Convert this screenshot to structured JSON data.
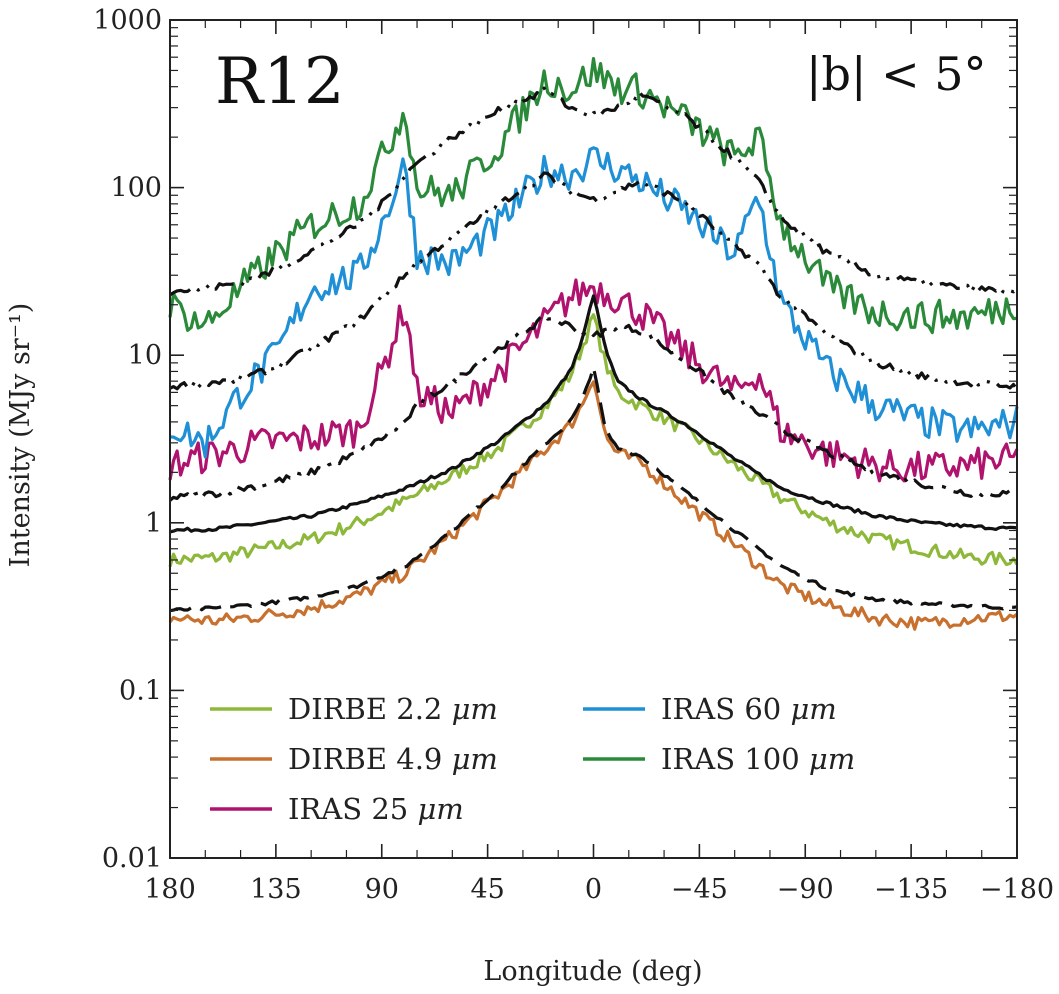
{
  "chart_data": {
    "type": "line",
    "title": "R12",
    "annotation": "|b| < 5°",
    "xlabel": "Longitude (deg)",
    "ylabel": "Intensity (MJy sr⁻¹)",
    "xlim": [
      180,
      -180
    ],
    "ylim": [
      0.01,
      1000
    ],
    "yscale": "log",
    "xticks": [
      180,
      135,
      90,
      45,
      0,
      -45,
      -90,
      -135,
      -180
    ],
    "xtick_labels": [
      "180",
      "135",
      "90",
      "45",
      "0",
      "−45",
      "−90",
      "−135",
      "−180"
    ],
    "yticks": [
      0.01,
      0.1,
      1,
      10,
      100,
      1000
    ],
    "ytick_labels": [
      "0.01",
      "0.1",
      "1",
      "10",
      "100",
      "1000"
    ],
    "series": [
      {
        "name": "DIRBE 2.2 μm",
        "label": "DIRBE 2.2 ",
        "unit": "μm",
        "color": "#8db83a",
        "x": [
          180,
          160,
          140,
          120,
          100,
          80,
          60,
          40,
          20,
          10,
          5,
          0,
          -5,
          -10,
          -20,
          -40,
          -60,
          -80,
          -100,
          -120,
          -140,
          -160,
          -180
        ],
        "values": [
          0.6,
          0.62,
          0.7,
          0.8,
          1.0,
          1.35,
          1.9,
          2.8,
          5.0,
          7.5,
          11,
          17,
          9,
          6,
          5,
          3.5,
          2.2,
          1.4,
          1.0,
          0.8,
          0.7,
          0.62,
          0.6
        ],
        "model": [
          0.9,
          0.92,
          1.0,
          1.1,
          1.3,
          1.6,
          2.1,
          3.1,
          5.2,
          8,
          12,
          23,
          11,
          7,
          5.5,
          3.8,
          2.4,
          1.6,
          1.3,
          1.1,
          1.0,
          0.95,
          0.92
        ],
        "model_style": "solid"
      },
      {
        "name": "DIRBE 4.9 μm",
        "label": "DIRBE 4.9 ",
        "unit": "μm",
        "color": "#c8702e",
        "x": [
          180,
          160,
          140,
          120,
          100,
          80,
          60,
          40,
          20,
          10,
          5,
          0,
          -5,
          -10,
          -20,
          -40,
          -60,
          -80,
          -100,
          -120,
          -140,
          -160,
          -180
        ],
        "values": [
          0.27,
          0.26,
          0.28,
          0.31,
          0.37,
          0.5,
          0.85,
          1.5,
          2.8,
          3.8,
          5,
          7.5,
          3.3,
          2.6,
          2.3,
          1.3,
          0.75,
          0.42,
          0.32,
          0.27,
          0.25,
          0.27,
          0.28
        ],
        "model": [
          0.3,
          0.31,
          0.33,
          0.36,
          0.42,
          0.55,
          0.9,
          1.6,
          3.0,
          4.0,
          5.3,
          8.5,
          3.6,
          2.8,
          2.5,
          1.5,
          0.9,
          0.55,
          0.4,
          0.35,
          0.33,
          0.32,
          0.31
        ],
        "model_style": "dash"
      },
      {
        "name": "IRAS 25 μm",
        "label": "IRAS 25 ",
        "unit": "μm",
        "color": "#b0136e",
        "x": [
          180,
          160,
          140,
          120,
          100,
          90,
          80,
          75,
          60,
          40,
          20,
          10,
          0,
          -10,
          -20,
          -40,
          -60,
          -70,
          -80,
          -100,
          -120,
          -140,
          -160,
          -180
        ],
        "values": [
          2.2,
          2.6,
          3.0,
          3.2,
          3.6,
          8.0,
          20,
          6.0,
          4.5,
          8,
          16,
          22,
          26,
          22,
          18,
          10,
          6.0,
          8.0,
          3.5,
          2.6,
          2.2,
          2.1,
          2.2,
          2.4
        ],
        "model": [
          1.4,
          1.5,
          1.7,
          2.0,
          2.6,
          3.2,
          4.0,
          5.0,
          7.0,
          11,
          17,
          15,
          13,
          15,
          14,
          9,
          5.5,
          4.5,
          3.6,
          2.6,
          2.0,
          1.7,
          1.5,
          1.5
        ],
        "model_style": "dashdot"
      },
      {
        "name": "IRAS 60 μm",
        "label": "IRAS 60 ",
        "unit": "μm",
        "color": "#1f8fd6",
        "x": [
          180,
          165,
          150,
          135,
          120,
          100,
          90,
          80,
          75,
          60,
          40,
          20,
          10,
          0,
          -10,
          -20,
          -40,
          -60,
          -70,
          -80,
          -100,
          -120,
          -140,
          -160,
          -180
        ],
        "values": [
          3.8,
          3.0,
          6.0,
          10,
          25,
          30,
          60,
          140,
          40,
          35,
          60,
          130,
          120,
          150,
          130,
          110,
          70,
          40,
          90,
          20,
          8,
          5,
          4,
          3.5,
          4.0
        ],
        "model": [
          6.5,
          6.8,
          7.2,
          8.5,
          11,
          16,
          22,
          30,
          36,
          50,
          80,
          120,
          95,
          85,
          95,
          110,
          80,
          45,
          35,
          22,
          13,
          9,
          7.5,
          6.8,
          6.5
        ],
        "model_style": "dashdotdot"
      },
      {
        "name": "IRAS 100 μm",
        "label": "IRAS 100 ",
        "unit": "μm",
        "color": "#2a8a3a",
        "x": [
          180,
          165,
          150,
          135,
          120,
          100,
          90,
          80,
          75,
          60,
          40,
          20,
          10,
          0,
          -10,
          -20,
          -40,
          -60,
          -70,
          -80,
          -100,
          -120,
          -140,
          -160,
          -180
        ],
        "values": [
          20,
          15,
          25,
          40,
          60,
          80,
          150,
          300,
          100,
          90,
          180,
          450,
          380,
          500,
          400,
          380,
          250,
          150,
          200,
          60,
          25,
          18,
          17,
          17,
          20
        ],
        "model": [
          24,
          25,
          27,
          32,
          42,
          60,
          80,
          120,
          140,
          200,
          290,
          380,
          300,
          270,
          300,
          360,
          260,
          150,
          110,
          65,
          40,
          30,
          27,
          25,
          24
        ],
        "model_style": "dashdotdot"
      }
    ],
    "legend": [
      {
        "label": "DIRBE 2.2 ",
        "unit": "μm",
        "color": "#8db83a"
      },
      {
        "label": "DIRBE 4.9 ",
        "unit": "μm",
        "color": "#c8702e"
      },
      {
        "label": "IRAS 25 ",
        "unit": "μm",
        "color": "#b0136e"
      },
      {
        "label": "IRAS 60 ",
        "unit": "μm",
        "color": "#1f8fd6"
      },
      {
        "label": "IRAS 100 ",
        "unit": "μm",
        "color": "#2a8a3a"
      }
    ],
    "legend_position": "bottom-left"
  }
}
